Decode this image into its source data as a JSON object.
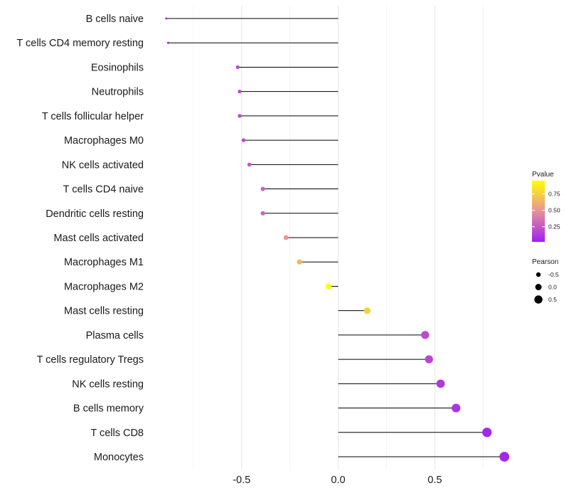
{
  "chart_data": {
    "type": "lollipop",
    "xlim": [
      -0.97,
      0.9
    ],
    "x_ticks": [
      -0.5,
      0.0,
      0.5
    ],
    "x_tick_labels": [
      "-0.5",
      "0.0",
      "0.5"
    ],
    "grid": true,
    "categories": [
      "B cells naive",
      "T cells CD4 memory resting",
      "Eosinophils",
      "Neutrophils",
      "T cells follicular helper",
      "Macrophages M0",
      "NK cells activated",
      "T cells CD4 naive",
      "Dendritic cells resting",
      "Mast cells activated",
      "Macrophages M1",
      "Macrophages M2",
      "Mast cells resting",
      "Plasma cells",
      "T cells regulatory  Tregs",
      "NK cells resting",
      "B cells memory",
      "T cells CD8",
      "Monocytes"
    ],
    "pearson": [
      -0.89,
      -0.88,
      -0.52,
      -0.51,
      -0.51,
      -0.49,
      -0.46,
      -0.39,
      -0.39,
      -0.27,
      -0.2,
      -0.05,
      0.15,
      0.45,
      0.47,
      0.53,
      0.61,
      0.77,
      0.86
    ],
    "pvalue": [
      0.05,
      0.05,
      0.2,
      0.2,
      0.2,
      0.2,
      0.25,
      0.3,
      0.3,
      0.5,
      0.65,
      0.95,
      0.75,
      0.2,
      0.18,
      0.12,
      0.1,
      0.05,
      0.05
    ],
    "legend": {
      "color_title": "Pvalue",
      "color_range": [
        0.02,
        0.95
      ],
      "color_ticks": [
        0.25,
        0.5,
        0.75
      ],
      "color_tick_labels": [
        "0.25",
        "0.50",
        "0.75"
      ],
      "color_low": "#a020f0",
      "color_mid": "#e8919a",
      "color_high": "#ffff00",
      "size_title": "Pearson",
      "size_values": [
        -0.5,
        0.0,
        0.5
      ],
      "size_labels": [
        "-0.5",
        "0.0",
        "0.5"
      ]
    }
  }
}
